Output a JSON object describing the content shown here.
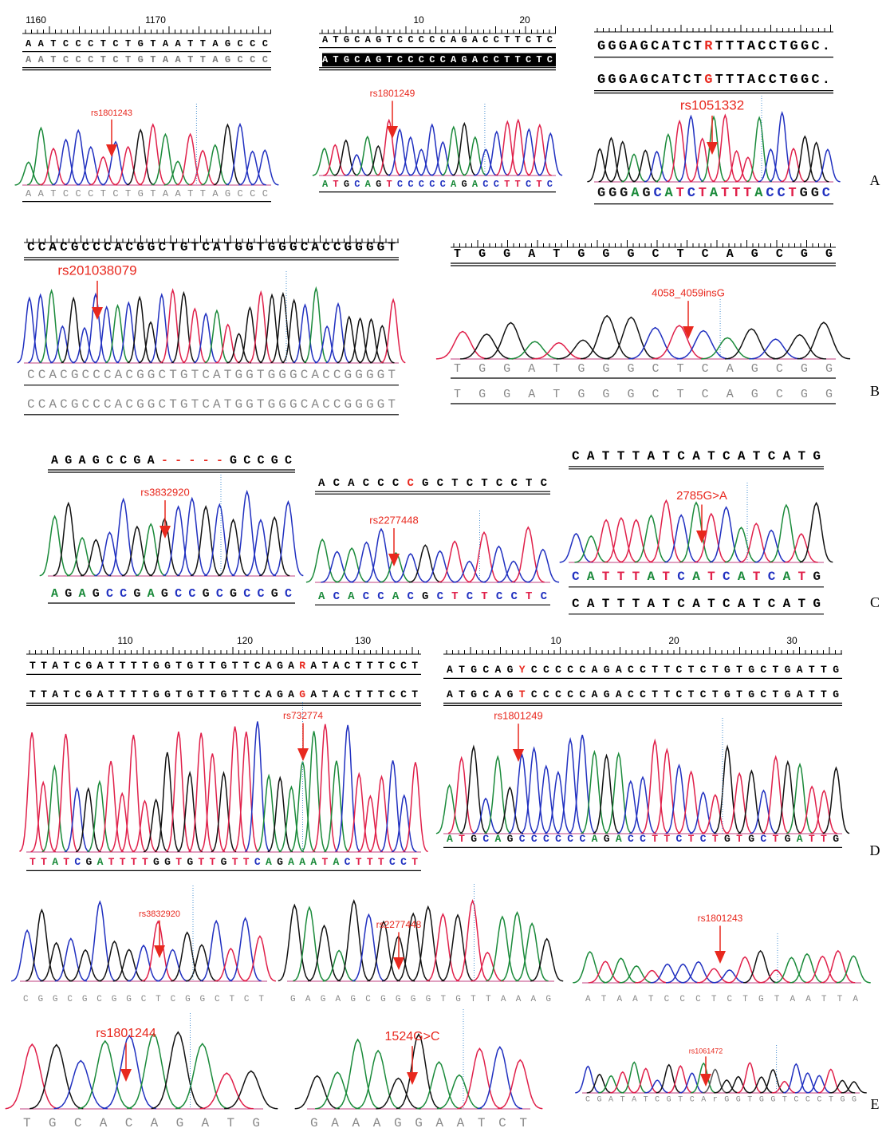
{
  "panels": [
    {
      "label": "A",
      "items": [
        {
          "ruler": [
            "1160",
            "1170"
          ],
          "top": [
            [
              "AATCCCTCTGTAATTAGCCC"
            ],
            [
              "AATCCCTCTGTAATTAGCCC"
            ]
          ],
          "annotation": "rs1801243",
          "bottom": [
            "AATCCCTCTGTAATTAGCCC"
          ]
        },
        {
          "ruler": [
            "10",
            "20"
          ],
          "top": [
            [
              "ATGCAGTCCCCCAGACCTTCTC"
            ],
            [
              "ATGCAGTCCCCCAGACCTTCTC"
            ]
          ],
          "annotation": "rs1801249",
          "bottom": [
            "ATGCAGTCCCCCAGACCTTCTC"
          ]
        },
        {
          "ruler": [],
          "top": [
            [
              "GGGAGCATCT",
              "R",
              "TTTACCTGGC."
            ],
            [
              "GGGAGCATCT",
              "G",
              "TTTACCTGGC."
            ]
          ],
          "annotation": "rs1051332",
          "bottom": [
            "GGGAGCATCTATTTACCTGGC"
          ]
        }
      ]
    },
    {
      "label": "B",
      "items": [
        {
          "ruler": [],
          "top": [
            [
              "CCACGCCCACGGCTGTCATGGTGGGCACCGGGGT"
            ]
          ],
          "annotation": "rs201038079",
          "bottom": [
            "CCACGCCCACGGCTGTCATGGTGGGCACCGGGGT",
            "CCACGCCCACGGCTGTCATGGTGGGCACCGGGGT"
          ]
        },
        {
          "ruler": [],
          "top": [
            [
              "TGGATGGGCTCAGCGG"
            ]
          ],
          "annotation": "4058_4059insG",
          "bottom": [
            "TGGATGGGCTCAGCGG",
            "TGGATGGGCTCAGCGG"
          ]
        }
      ]
    },
    {
      "label": "C",
      "items": [
        {
          "ruler": [],
          "top": [
            [
              "AGAGCCGA",
              "-----",
              "GCCGC"
            ]
          ],
          "annotation": "rs3832920",
          "bottom": [
            "AGAGCCGAGCCGCGCCGC"
          ]
        },
        {
          "ruler": [],
          "top": [
            [
              "ACACCC",
              "C",
              "GCTCTCCTC"
            ]
          ],
          "annotation": "rs2277448",
          "bottom": [
            "ACACCACGCTCTCCTC"
          ]
        },
        {
          "ruler": [],
          "top": [
            [
              "CATTTATCATCATCATG"
            ]
          ],
          "annotation": "2785G>A",
          "bottom": [
            "CATTTATCATCATCATG",
            "CATTTATCATCATCATG"
          ]
        }
      ]
    },
    {
      "label": "D",
      "items": [
        {
          "ruler": [
            "110",
            "120",
            "130"
          ],
          "top": [
            [
              "TTATCGATTTTGGTGTTGTTCAGA",
              "R",
              "ATACTTTCCT"
            ],
            [
              "TTATCGATTTTGGTGTTGTTCAGA",
              "G",
              "ATACTTTCCT"
            ]
          ],
          "annotation": "rs732774",
          "bottom": [
            "TTATCGATTTTGGTGTTGTTCAGAAATACTTTCCT"
          ]
        },
        {
          "ruler": [
            "10",
            "20",
            "30"
          ],
          "top": [
            [
              "ATGCAG",
              "Y",
              "CCCCCAGACCTTCTCTGTGCTGATTG"
            ],
            [
              "ATGCAG",
              "T",
              "CCCCCAGACCTTCTCTGTGCTGATTG"
            ]
          ],
          "annotation": "rs1801249",
          "bottom": [
            "ATGCAGCCCCCCAGACCTTCTCTGTGCTGATTG"
          ]
        }
      ]
    },
    {
      "label": "E",
      "items": [
        {
          "ruler": [],
          "top": [],
          "annotation": "rs3832920",
          "bottom": [
            "CGGCGCGGCTCGGCTCT"
          ]
        },
        {
          "ruler": [],
          "top": [],
          "annotation": "rs2277448",
          "bottom": [
            "GAGAGCGGGGTGTTAAAG"
          ]
        },
        {
          "ruler": [],
          "top": [],
          "annotation": "rs1801243",
          "bottom": [
            "ATAATCCCTCTGTAATTA"
          ]
        },
        {
          "ruler": [],
          "top": [],
          "annotation": "rs1801244",
          "bottom": [
            "TGCACAGATG"
          ]
        },
        {
          "ruler": [],
          "top": [],
          "annotation": "1524G>C",
          "bottom": [
            "GAAAGGAATCT"
          ]
        },
        {
          "ruler": [],
          "top": [],
          "annotation": "rs1061472",
          "bottom": [
            "CGATATCGTCArGGTGGTCCCTGG"
          ]
        }
      ]
    }
  ]
}
